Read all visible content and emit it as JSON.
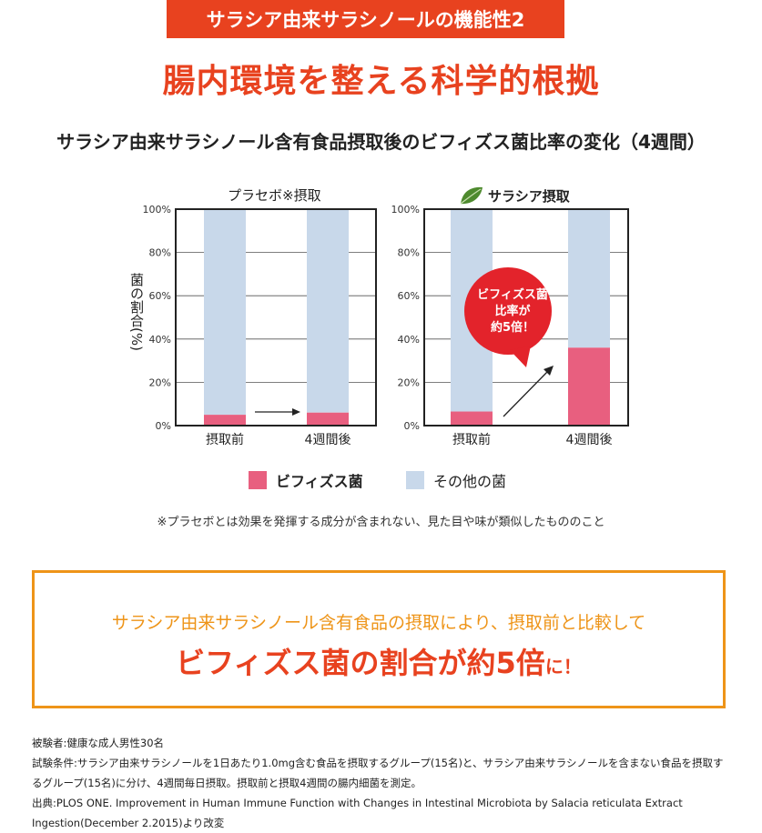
{
  "header": {
    "badge": "サラシア由来サラシノールの機能性2",
    "title": "腸内環境を整える科学的根拠",
    "subtitle": "サラシア由来サラシノール含有食品摂取後のビフィズス菌比率の変化（4週間）"
  },
  "colors": {
    "accent": "#e8421f",
    "orange": "#ee9418",
    "bifido": "#e85f7f",
    "other": "#c8d8ea",
    "bubble": "#e3232b"
  },
  "chart_data": [
    {
      "type": "bar",
      "stacked": true,
      "title": "プラセボ※摂取",
      "categories": [
        "摂取前",
        "4週間後"
      ],
      "series": [
        {
          "name": "ビフィズス菌",
          "values": [
            5,
            6
          ]
        },
        {
          "name": "その他の菌",
          "values": [
            95,
            94
          ]
        }
      ],
      "ylabel": "菌の割合(%)",
      "ylim": [
        0,
        100
      ],
      "yticks": [
        "0%",
        "20%",
        "40%",
        "60%",
        "80%",
        "100%"
      ],
      "grid": true
    },
    {
      "type": "bar",
      "stacked": true,
      "title": "サラシア摂取",
      "title_icon": "leaf-icon",
      "categories": [
        "摂取前",
        "4週間後"
      ],
      "series": [
        {
          "name": "ビフィズス菌",
          "values": [
            6.5,
            36
          ]
        },
        {
          "name": "その他の菌",
          "values": [
            93.5,
            64
          ]
        }
      ],
      "ylim": [
        0,
        100
      ],
      "yticks": [
        "0%",
        "20%",
        "40%",
        "60%",
        "80%",
        "100%"
      ],
      "grid": true,
      "annotation": {
        "lines": [
          "ビフィズス菌",
          "比率が",
          "約5倍！"
        ]
      }
    }
  ],
  "legend": {
    "items": [
      "ビフィズス菌",
      "その他の菌"
    ],
    "placement": "bottom"
  },
  "note": "※プラセボとは効果を発揮する成分が含まれない、見た目や味が類似したもののこと",
  "summary": {
    "line1": "サラシア由来サラシノール含有食品の摂取により、摂取前と比較して",
    "line2_main": "ビフィズス菌の割合が約5倍",
    "line2_suffix": "に！"
  },
  "footnotes": [
    "被験者:健康な成人男性30名",
    "試験条件:サラシア由来サラシノールを1日あたり1.0mg含む食品を摂取するグループ(15名)と、サラシア由来サラシノールを含まない食品を摂取するグループ(15名)に分け、4週間毎日摂取。摂取前と摂取4週間の腸内細菌を測定。",
    "出典:PLOS ONE. Improvement in Human Immune Function with Changes in Intestinal Microbiota by Salacia reticulata Extract Ingestion(December 2.2015)より改変"
  ]
}
